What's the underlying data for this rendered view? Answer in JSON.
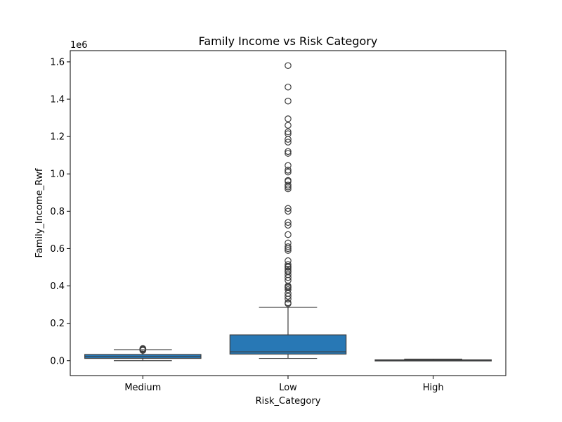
{
  "chart_data": {
    "type": "boxplot",
    "title": "Family Income vs Risk Category",
    "xlabel": "Risk_Category",
    "ylabel": "Family_Income_Rwf",
    "y_offset_label": "1e6",
    "ylim": [
      -0.08,
      1.66
    ],
    "y_scale_note": "values in units of 1e6 Rwf",
    "y_ticks": [
      "0.0",
      "0.2",
      "0.4",
      "0.6",
      "0.8",
      "1.0",
      "1.2",
      "1.4",
      "1.6"
    ],
    "categories": [
      "Medium",
      "Low",
      "High"
    ],
    "box_color": "#2878b5",
    "grid": false,
    "boxes": [
      {
        "category": "Medium",
        "whisker_low": 0.0,
        "q1": 0.012,
        "median": 0.022,
        "q3": 0.033,
        "whisker_high": 0.058,
        "outliers": [
          0.055,
          0.058,
          0.062,
          0.065
        ]
      },
      {
        "category": "Low",
        "whisker_low": 0.012,
        "q1": 0.035,
        "median": 0.047,
        "q3": 0.138,
        "whisker_high": 0.285,
        "outliers": [
          0.305,
          0.31,
          0.33,
          0.345,
          0.36,
          0.38,
          0.39,
          0.395,
          0.4,
          0.43,
          0.445,
          0.46,
          0.475,
          0.48,
          0.49,
          0.5,
          0.505,
          0.515,
          0.535,
          0.59,
          0.6,
          0.61,
          0.63,
          0.675,
          0.725,
          0.74,
          0.8,
          0.815,
          0.92,
          0.93,
          0.94,
          0.96,
          0.965,
          1.01,
          1.02,
          1.045,
          1.11,
          1.12,
          1.17,
          1.185,
          1.215,
          1.225,
          1.26,
          1.295,
          1.39,
          1.465,
          1.58
        ]
      },
      {
        "category": "High",
        "whisker_low": 0.0,
        "q1": 0.0005,
        "median": 0.002,
        "q3": 0.004,
        "whisker_high": 0.008,
        "outliers": []
      }
    ]
  }
}
